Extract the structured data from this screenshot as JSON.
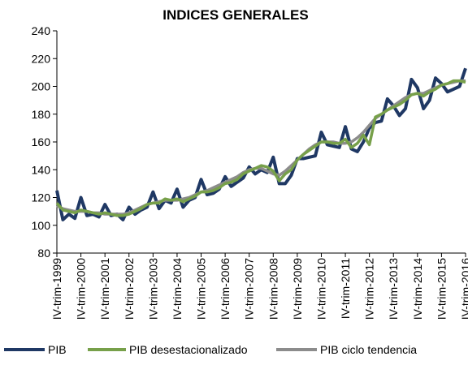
{
  "chart_data": {
    "type": "line",
    "title": "INDICES GENERALES",
    "categories": [
      "IV-trim-1999",
      null,
      null,
      null,
      "IV-trim-2000",
      null,
      null,
      null,
      "IV-trim-2001",
      null,
      null,
      null,
      "IV-trim-2002",
      null,
      null,
      null,
      "IV-trim-2003",
      null,
      null,
      null,
      "IV-trim-2004",
      null,
      null,
      null,
      "IV-trim-2005",
      null,
      null,
      null,
      "IV-trim-2006",
      null,
      null,
      null,
      "IV-trim-2007",
      null,
      null,
      null,
      "IV-trim-2008",
      null,
      null,
      null,
      "IV-trim-2009",
      null,
      null,
      null,
      "IV-trim-2010",
      null,
      null,
      null,
      "IV-trim-2011",
      null,
      null,
      null,
      "IV-trim-2012",
      null,
      null,
      null,
      "IV-trim-2013",
      null,
      null,
      null,
      "IV-trim-2014",
      null,
      null,
      null,
      "IV-trim-2015",
      null,
      null,
      null,
      "IV-trim-2016"
    ],
    "series": [
      {
        "name": "PIB",
        "color": "#1f3864",
        "values": [
          125,
          104,
          108,
          105,
          120,
          107,
          108,
          106,
          115,
          107,
          108,
          104,
          113,
          108,
          111,
          113,
          124,
          112,
          118,
          116,
          126,
          113,
          118,
          120,
          133,
          122,
          123,
          126,
          135,
          128,
          131,
          134,
          142,
          137,
          140,
          138,
          149,
          130,
          130,
          136,
          148,
          148,
          149,
          150,
          167,
          158,
          157,
          156,
          171,
          155,
          153,
          160,
          170,
          174,
          175,
          191,
          186,
          179,
          184,
          205,
          199,
          184,
          190,
          206,
          202,
          196,
          198,
          200,
          213
        ]
      },
      {
        "name": "PIB desestacionalizado",
        "color": "#77a04a",
        "values": [
          116,
          111,
          110,
          109,
          111,
          110,
          109,
          108,
          109,
          108,
          107,
          107,
          108,
          110,
          112,
          115,
          116,
          116,
          119,
          118,
          119,
          117,
          119,
          121,
          124,
          124,
          125,
          127,
          130,
          131,
          133,
          137,
          139,
          141,
          143,
          142,
          139,
          132,
          137,
          140,
          147,
          151,
          154,
          157,
          160,
          160,
          159,
          159,
          162,
          156,
          159,
          165,
          158,
          178,
          180,
          183,
          185,
          187,
          190,
          194,
          195,
          193,
          196,
          198,
          201,
          202,
          204,
          204,
          203
        ]
      },
      {
        "name": "PIB ciclo tendencia",
        "color": "#8c8c8c",
        "values": [
          114,
          112,
          111,
          110,
          110,
          110,
          109,
          109,
          108,
          108,
          108,
          108,
          109,
          111,
          113,
          115,
          116,
          117,
          118,
          118,
          118,
          119,
          120,
          122,
          124,
          125,
          127,
          129,
          131,
          133,
          135,
          138,
          140,
          141,
          141,
          139,
          137,
          136,
          139,
          143,
          147,
          151,
          155,
          158,
          160,
          160,
          160,
          159,
          159,
          160,
          163,
          167,
          172,
          177,
          180,
          183,
          186,
          189,
          192,
          194,
          195,
          195,
          197,
          199,
          201,
          202,
          203,
          204,
          204
        ]
      }
    ],
    "ylim": [
      80,
      240
    ],
    "yticks": [
      80,
      100,
      120,
      140,
      160,
      180,
      200,
      220,
      240
    ],
    "grid": false
  }
}
